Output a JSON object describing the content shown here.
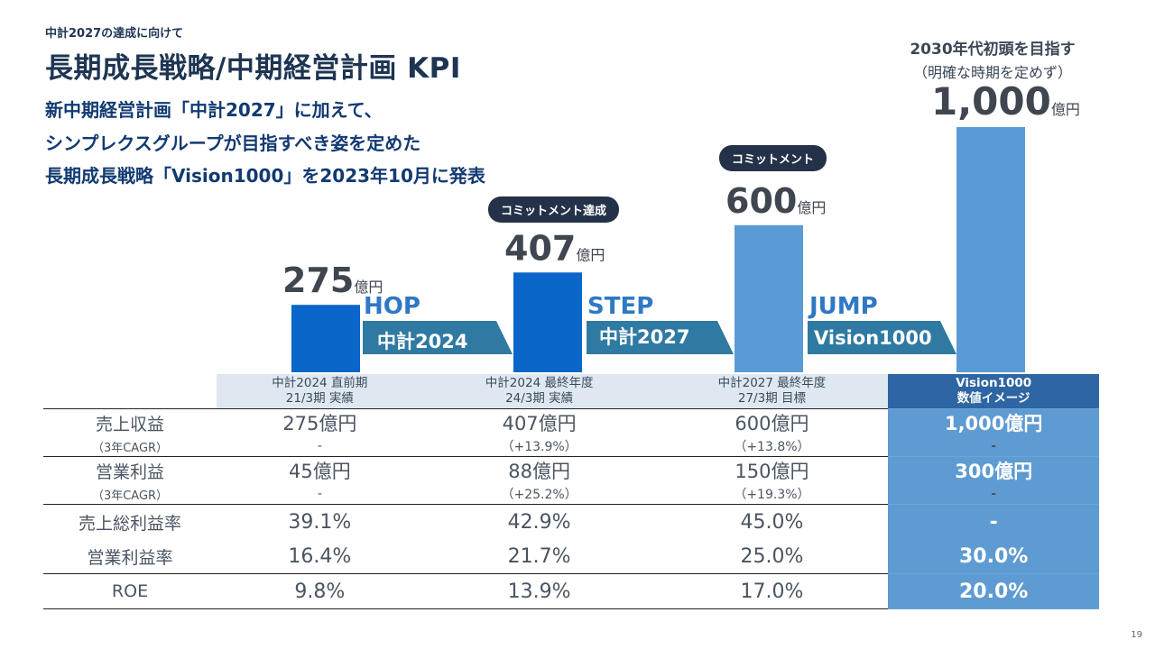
{
  "header": {
    "subtitle": "中計2027の達成に向けて",
    "title": "長期成長戦略/中期経営計画 KPI",
    "lead": [
      "新中期経営計画「中計2027」に加えて、",
      "シンプレクスグループが目指すべき姿を定めた",
      "長期成長戦略「Vision1000」を2023年10月に発表"
    ]
  },
  "vision_target": {
    "line1": "2030年代初頭を目指す",
    "line2": "（明確な時期を定めず）"
  },
  "badges": {
    "achieved": "コミットメント達成",
    "commit": "コミットメント"
  },
  "phases": [
    "HOP",
    "STEP",
    "JUMP"
  ],
  "plans": [
    "中計2024",
    "中計2027",
    "Vision1000"
  ],
  "chart_data": {
    "type": "bar",
    "categories": [
      "中計2024 直前期 21/3期 実績",
      "中計2024 最終年度 24/3期 実績",
      "中計2027 最終年度 27/3期 目標",
      "Vision1000 数値イメージ"
    ],
    "values": [
      275,
      407,
      600,
      1000
    ],
    "value_labels": [
      "275",
      "407",
      "600",
      "1,000"
    ],
    "unit": "億円",
    "ylim": [
      0,
      1000
    ],
    "colors": [
      "#0a66c8",
      "#0a66c8",
      "#5b9bd5",
      "#5b9bd5"
    ]
  },
  "table": {
    "headers": [
      {
        "line1": "中計2024 直前期",
        "line2": "21/3期 実績"
      },
      {
        "line1": "中計2024 最終年度",
        "line2": "24/3期 実績"
      },
      {
        "line1": "中計2027 最終年度",
        "line2": "27/3期 目標"
      },
      {
        "line1": "Vision1000",
        "line2": "数値イメージ"
      }
    ],
    "revenue": {
      "label": "売上収益",
      "values": [
        "275億円",
        "407億円",
        "600億円",
        "1,000億円"
      ]
    },
    "revenue_cagr": {
      "label": "（3年CAGR）",
      "values": [
        "-",
        "（+13.9%）",
        "（+13.8%）",
        "-"
      ]
    },
    "op_profit": {
      "label": "営業利益",
      "values": [
        "45億円",
        "88億円",
        "150億円",
        "300億円"
      ]
    },
    "op_cagr": {
      "label": "（3年CAGR）",
      "values": [
        "-",
        "（+25.2%）",
        "（+19.3%）",
        "-"
      ]
    },
    "gross_margin": {
      "label": "売上総利益率",
      "values": [
        "39.1%",
        "42.9%",
        "45.0%",
        "-"
      ]
    },
    "op_margin": {
      "label": "営業利益率",
      "values": [
        "16.4%",
        "21.7%",
        "25.0%",
        "30.0%"
      ]
    },
    "roe": {
      "label": "ROE",
      "values": [
        "9.8%",
        "13.9%",
        "17.0%",
        "20.0%"
      ]
    }
  },
  "page_number": "19"
}
